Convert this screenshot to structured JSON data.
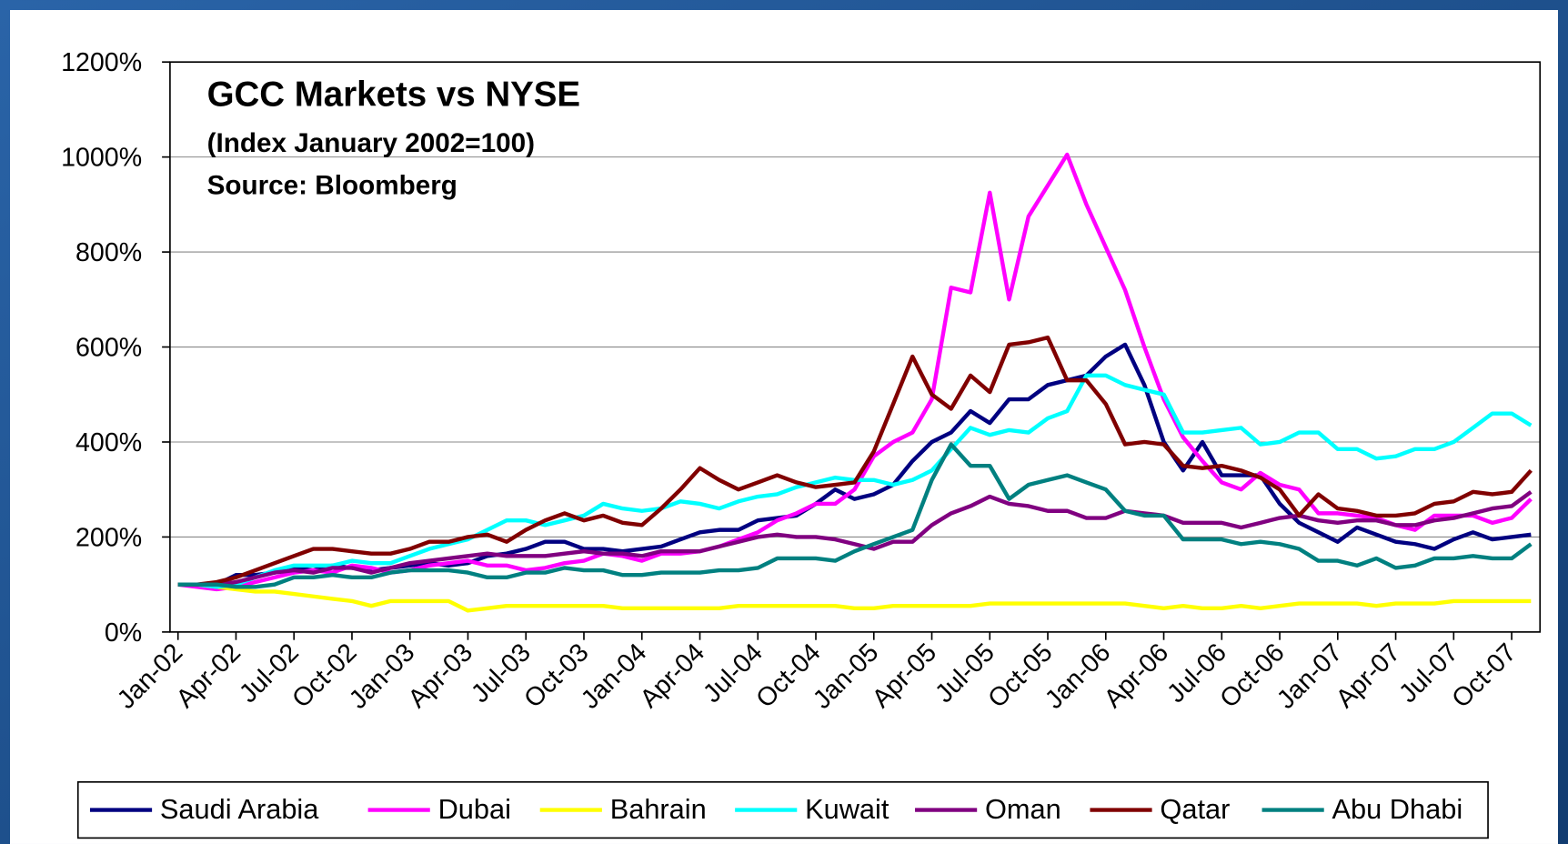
{
  "chart_data": {
    "type": "line",
    "title": "GCC Markets vs NYSE",
    "subtitle": "(Index January 2002=100)",
    "annotations": [
      "Source: Bloomberg"
    ],
    "categories": [
      "Jan-02",
      null,
      null,
      "Apr-02",
      null,
      null,
      "Jul-02",
      null,
      null,
      "Oct-02",
      null,
      null,
      "Jan-03",
      null,
      null,
      "Apr-03",
      null,
      null,
      "Jul-03",
      null,
      null,
      "Oct-03",
      null,
      null,
      "Jan-04",
      null,
      null,
      "Apr-04",
      null,
      null,
      "Jul-04",
      null,
      null,
      "Oct-04",
      null,
      null,
      "Jan-05",
      null,
      null,
      "Apr-05",
      null,
      null,
      "Jul-05",
      null,
      null,
      "Oct-05",
      null,
      null,
      "Jan-06",
      null,
      null,
      "Apr-06",
      null,
      null,
      "Jul-06",
      null,
      null,
      "Oct-06",
      null,
      null,
      "Jan-07",
      null,
      null,
      "Apr-07",
      null,
      null,
      "Jul-07",
      null,
      null,
      "Oct-07",
      null
    ],
    "series": [
      {
        "name": "Saudi Arabia",
        "color": "#000080",
        "values": [
          100,
          100,
          100,
          120,
          120,
          125,
          135,
          130,
          140,
          135,
          130,
          135,
          140,
          145,
          140,
          145,
          160,
          165,
          175,
          190,
          190,
          175,
          175,
          170,
          175,
          180,
          195,
          210,
          215,
          215,
          235,
          240,
          245,
          270,
          300,
          280,
          290,
          310,
          360,
          400,
          420,
          465,
          440,
          490,
          490,
          520,
          530,
          540,
          580,
          605,
          520,
          400,
          340,
          400,
          330,
          330,
          330,
          270,
          230,
          210,
          190,
          220,
          205,
          190,
          185,
          175,
          195,
          210,
          195,
          200,
          205
        ]
      },
      {
        "name": "Dubai",
        "color": "#ff00ff",
        "values": [
          100,
          95,
          90,
          95,
          105,
          115,
          125,
          130,
          125,
          140,
          135,
          125,
          130,
          140,
          145,
          150,
          140,
          140,
          130,
          135,
          145,
          150,
          165,
          160,
          150,
          165,
          165,
          170,
          180,
          195,
          210,
          235,
          250,
          270,
          270,
          300,
          370,
          400,
          420,
          490,
          725,
          715,
          925,
          700,
          875,
          940,
          1005,
          900,
          810,
          720,
          600,
          490,
          410,
          360,
          315,
          300,
          335,
          310,
          300,
          250,
          250,
          245,
          240,
          225,
          215,
          245,
          245,
          245,
          230,
          240,
          280
        ]
      },
      {
        "name": "Bahrain",
        "color": "#ffff00",
        "values": [
          100,
          100,
          95,
          90,
          85,
          85,
          80,
          75,
          70,
          65,
          55,
          65,
          65,
          65,
          65,
          45,
          50,
          55,
          55,
          55,
          55,
          55,
          55,
          50,
          50,
          50,
          50,
          50,
          50,
          55,
          55,
          55,
          55,
          55,
          55,
          50,
          50,
          55,
          55,
          55,
          55,
          55,
          60,
          60,
          60,
          60,
          60,
          60,
          60,
          60,
          55,
          50,
          55,
          50,
          50,
          55,
          50,
          55,
          60,
          60,
          60,
          60,
          55,
          60,
          60,
          60,
          65,
          65,
          65,
          65,
          65
        ]
      },
      {
        "name": "Kuwait",
        "color": "#00ffff",
        "values": [
          100,
          100,
          95,
          100,
          115,
          130,
          140,
          140,
          140,
          150,
          145,
          145,
          160,
          175,
          185,
          195,
          215,
          235,
          235,
          225,
          235,
          245,
          270,
          260,
          255,
          260,
          275,
          270,
          260,
          275,
          285,
          290,
          305,
          315,
          325,
          320,
          320,
          310,
          320,
          340,
          385,
          430,
          415,
          425,
          420,
          450,
          465,
          540,
          540,
          520,
          510,
          500,
          420,
          420,
          425,
          430,
          395,
          400,
          420,
          420,
          385,
          385,
          365,
          370,
          385,
          385,
          400,
          430,
          460,
          460,
          435
        ]
      },
      {
        "name": "Oman",
        "color": "#800080",
        "values": [
          100,
          100,
          100,
          105,
          115,
          125,
          130,
          125,
          135,
          135,
          125,
          135,
          145,
          150,
          155,
          160,
          165,
          160,
          160,
          160,
          165,
          170,
          165,
          165,
          160,
          170,
          170,
          170,
          180,
          190,
          200,
          205,
          200,
          200,
          195,
          185,
          175,
          190,
          190,
          225,
          250,
          265,
          285,
          270,
          265,
          255,
          255,
          240,
          240,
          255,
          250,
          245,
          230,
          230,
          230,
          220,
          230,
          240,
          245,
          235,
          230,
          235,
          235,
          225,
          225,
          235,
          240,
          250,
          260,
          265,
          295
        ]
      },
      {
        "name": "Qatar",
        "color": "#800000",
        "values": [
          100,
          100,
          105,
          115,
          130,
          145,
          160,
          175,
          175,
          170,
          165,
          165,
          175,
          190,
          190,
          200,
          205,
          190,
          215,
          235,
          250,
          235,
          245,
          230,
          225,
          260,
          300,
          345,
          320,
          300,
          315,
          330,
          315,
          305,
          310,
          315,
          380,
          480,
          580,
          500,
          470,
          540,
          505,
          605,
          610,
          620,
          530,
          530,
          480,
          395,
          400,
          395,
          350,
          345,
          350,
          340,
          325,
          300,
          245,
          290,
          260,
          255,
          245,
          245,
          250,
          270,
          275,
          295,
          290,
          295,
          340
        ]
      },
      {
        "name": "Abu Dhabi",
        "color": "#008080",
        "values": [
          100,
          100,
          100,
          95,
          95,
          100,
          115,
          115,
          120,
          115,
          115,
          125,
          130,
          130,
          130,
          125,
          115,
          115,
          125,
          125,
          135,
          130,
          130,
          120,
          120,
          125,
          125,
          125,
          130,
          130,
          135,
          155,
          155,
          155,
          150,
          170,
          185,
          200,
          215,
          320,
          395,
          350,
          350,
          280,
          310,
          320,
          330,
          315,
          300,
          255,
          245,
          245,
          195,
          195,
          195,
          185,
          190,
          185,
          175,
          150,
          150,
          140,
          155,
          135,
          140,
          155,
          155,
          160,
          155,
          155,
          185
        ]
      }
    ],
    "ylim": [
      0,
      1200
    ],
    "yticks": [
      {
        "value": 0,
        "label": "0%"
      },
      {
        "value": 200,
        "label": "200%"
      },
      {
        "value": 400,
        "label": "400%"
      },
      {
        "value": 600,
        "label": "600%"
      },
      {
        "value": 800,
        "label": "800%"
      },
      {
        "value": 1000,
        "label": "1000%"
      },
      {
        "value": 1200,
        "label": "1200%"
      }
    ],
    "grid": true,
    "legend": "bottom"
  }
}
